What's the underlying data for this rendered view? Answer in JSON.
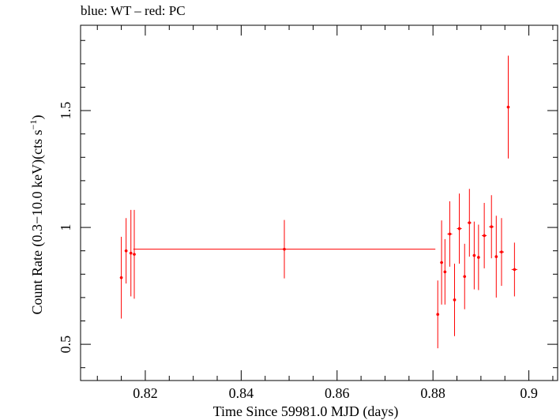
{
  "title": "blue: WT – red: PC",
  "chart_data": {
    "type": "scatter",
    "title": "blue: WT – red: PC",
    "xlabel": "Time Since 59981.0 MJD (days)",
    "ylabel_main": "Count Rate (0.3−10.0 keV)(cts s",
    "ylabel_sup": "−1",
    "ylabel_end": ")",
    "xlim": [
      0.8065,
      0.906
    ],
    "ylim": [
      0.345,
      1.865
    ],
    "x_ticks": [
      0.82,
      0.84,
      0.86,
      0.88,
      0.9
    ],
    "x_tick_labels": [
      "0.82",
      "0.84",
      "0.86",
      "0.88",
      "0.9"
    ],
    "y_ticks": [
      0.5,
      1.0,
      1.5
    ],
    "y_tick_labels": [
      "0.5",
      "1",
      "1.5"
    ],
    "grid": false,
    "series": [
      {
        "color": "#ff0000",
        "points": [
          {
            "x": 0.815,
            "y": 0.785,
            "xerr": 0.0003,
            "yerr": 0.175
          },
          {
            "x": 0.816,
            "y": 0.9,
            "xerr": 0.0003,
            "yerr": 0.14
          },
          {
            "x": 0.817,
            "y": 0.89,
            "xerr": 0.0003,
            "yerr": 0.185
          },
          {
            "x": 0.8177,
            "y": 0.885,
            "xerr": 0.0003,
            "yerr": 0.19
          },
          {
            "x": 0.849,
            "y": 0.907,
            "xerr": 0.0315,
            "yerr": 0.125
          },
          {
            "x": 0.881,
            "y": 0.628,
            "xerr": 0.0003,
            "yerr": 0.145
          },
          {
            "x": 0.8818,
            "y": 0.85,
            "xerr": 0.0003,
            "yerr": 0.18
          },
          {
            "x": 0.8825,
            "y": 0.81,
            "xerr": 0.0003,
            "yerr": 0.14
          },
          {
            "x": 0.8835,
            "y": 0.972,
            "xerr": 0.0005,
            "yerr": 0.14
          },
          {
            "x": 0.8845,
            "y": 0.69,
            "xerr": 0.0003,
            "yerr": 0.155
          },
          {
            "x": 0.8855,
            "y": 0.995,
            "xerr": 0.0005,
            "yerr": 0.15
          },
          {
            "x": 0.8866,
            "y": 0.79,
            "xerr": 0.0003,
            "yerr": 0.14
          },
          {
            "x": 0.8876,
            "y": 1.02,
            "xerr": 0.0004,
            "yerr": 0.145
          },
          {
            "x": 0.8886,
            "y": 0.88,
            "xerr": 0.0003,
            "yerr": 0.145
          },
          {
            "x": 0.8895,
            "y": 0.872,
            "xerr": 0.0003,
            "yerr": 0.14
          },
          {
            "x": 0.8907,
            "y": 0.965,
            "xerr": 0.0005,
            "yerr": 0.14
          },
          {
            "x": 0.8922,
            "y": 1.003,
            "xerr": 0.0005,
            "yerr": 0.135
          },
          {
            "x": 0.8932,
            "y": 0.875,
            "xerr": 0.0003,
            "yerr": 0.175
          },
          {
            "x": 0.8943,
            "y": 0.895,
            "xerr": 0.0005,
            "yerr": 0.145
          },
          {
            "x": 0.8957,
            "y": 1.515,
            "xerr": 0.0003,
            "yerr": 0.22
          },
          {
            "x": 0.897,
            "y": 0.82,
            "xerr": 0.0006,
            "yerr": 0.115
          }
        ]
      }
    ]
  }
}
